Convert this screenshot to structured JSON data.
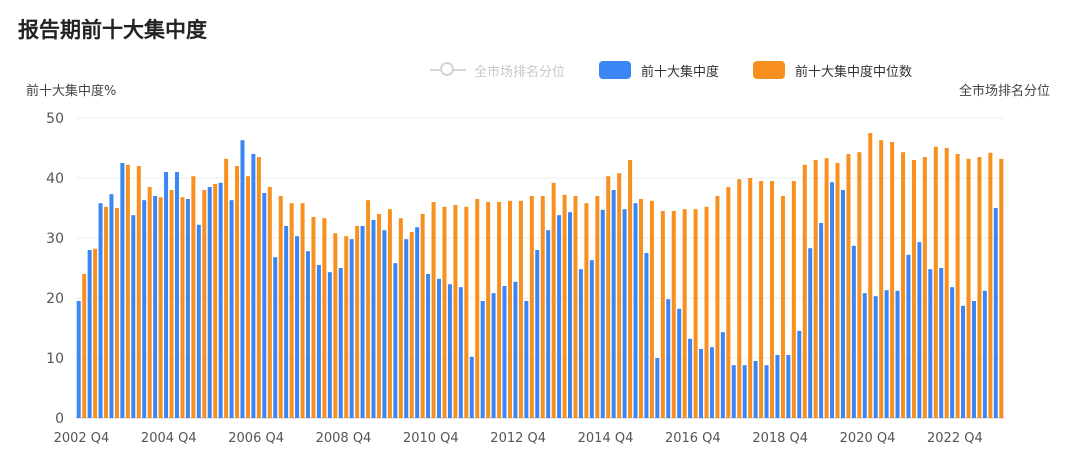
{
  "page": {
    "title": "报告期前十大集中度"
  },
  "legend": [
    {
      "label": "全市场排名分位",
      "color": "#d4d4d4",
      "kind": "line",
      "active": false
    },
    {
      "label": "前十大集中度",
      "color": "#3a86f5",
      "kind": "bar",
      "active": true
    },
    {
      "label": "前十大集中度中位数",
      "color": "#f7901e",
      "kind": "bar",
      "active": true
    }
  ],
  "axes": {
    "left_name": "前十大集中度%",
    "right_name": "全市场排名分位"
  },
  "chart_data": {
    "type": "bar",
    "title": "报告期前十大集中度",
    "ylabel": "前十大集中度%",
    "ylim": [
      0,
      50
    ],
    "yticks": [
      0,
      10,
      20,
      30,
      40,
      50
    ],
    "grid": true,
    "legend_position": "top",
    "x_tick_labels": [
      "2002 Q4",
      "2004 Q4",
      "2006 Q4",
      "2008 Q4",
      "2010 Q4",
      "2012 Q4",
      "2014 Q4",
      "2016 Q4",
      "2018 Q4",
      "2020 Q4",
      "2022 Q4"
    ],
    "categories": [
      "2002 Q4",
      "2003 Q1",
      "2003 Q2",
      "2003 Q3",
      "2003 Q4",
      "2004 Q1",
      "2004 Q2",
      "2004 Q3",
      "2004 Q4",
      "2005 Q1",
      "2005 Q2",
      "2005 Q3",
      "2005 Q4",
      "2006 Q1",
      "2006 Q2",
      "2006 Q3",
      "2006 Q4",
      "2007 Q1",
      "2007 Q2",
      "2007 Q3",
      "2007 Q4",
      "2008 Q1",
      "2008 Q2",
      "2008 Q3",
      "2008 Q4",
      "2009 Q1",
      "2009 Q2",
      "2009 Q3",
      "2009 Q4",
      "2010 Q1",
      "2010 Q2",
      "2010 Q3",
      "2010 Q4",
      "2011 Q1",
      "2011 Q2",
      "2011 Q3",
      "2011 Q4",
      "2012 Q1",
      "2012 Q2",
      "2012 Q3",
      "2012 Q4",
      "2013 Q1",
      "2013 Q2",
      "2013 Q3",
      "2013 Q4",
      "2014 Q1",
      "2014 Q2",
      "2014 Q3",
      "2014 Q4",
      "2015 Q1",
      "2015 Q2",
      "2015 Q3",
      "2015 Q4",
      "2016 Q1",
      "2016 Q2",
      "2016 Q3",
      "2016 Q4",
      "2017 Q1",
      "2017 Q2",
      "2017 Q3",
      "2017 Q4",
      "2018 Q1",
      "2018 Q2",
      "2018 Q3",
      "2018 Q4",
      "2019 Q1",
      "2019 Q2",
      "2019 Q3",
      "2019 Q4",
      "2020 Q1",
      "2020 Q2",
      "2020 Q3",
      "2020 Q4",
      "2021 Q1",
      "2021 Q2",
      "2021 Q3",
      "2021 Q4",
      "2022 Q1",
      "2022 Q2",
      "2022 Q3",
      "2022 Q4",
      "2023 Q1",
      "2023 Q2",
      "2023 Q3",
      "2023 Q4"
    ],
    "series": [
      {
        "name": "前十大集中度",
        "color": "#3a86f5",
        "values": [
          19.5,
          28,
          35.8,
          37.3,
          42.5,
          33.8,
          36.3,
          37,
          41,
          41,
          36.5,
          32.2,
          38.5,
          39.2,
          36.3,
          46.3,
          44,
          37.5,
          26.8,
          32,
          30.3,
          27.8,
          25.5,
          24.3,
          25,
          29.8,
          32,
          33,
          31.3,
          25.8,
          29.8,
          31.8,
          24,
          23.2,
          22.3,
          21.8,
          10.2,
          19.5,
          20.8,
          22,
          22.7,
          19.5,
          28,
          31.3,
          33.8,
          34.3,
          24.8,
          26.3,
          34.7,
          38,
          34.8,
          35.8,
          27.5,
          10,
          19.8,
          18.2,
          13.2,
          11.5,
          11.8,
          14.3,
          8.8,
          8.8,
          9.5,
          8.8,
          10.5,
          10.5,
          14.5,
          28.3,
          32.5,
          39.3,
          38,
          28.7,
          20.8,
          20.3,
          21.3,
          21.2,
          27.2,
          29.3,
          24.8,
          25,
          21.8,
          18.7,
          19.5,
          21.2,
          35
        ]
      },
      {
        "name": "前十大集中度中位数",
        "color": "#f7901e",
        "values": [
          24,
          28.2,
          35.2,
          35,
          42.2,
          42,
          38.5,
          36.8,
          38,
          36.8,
          40.3,
          38,
          39,
          43.2,
          42,
          40.3,
          43.5,
          38.5,
          37,
          35.8,
          35.8,
          33.5,
          33.3,
          30.8,
          30.3,
          32,
          36.3,
          34,
          34.8,
          33.3,
          31,
          34,
          36,
          35.2,
          35.5,
          35.2,
          36.5,
          36,
          36,
          36.2,
          36.2,
          37,
          37,
          39.2,
          37.2,
          37,
          35.8,
          37,
          40.3,
          40.8,
          43,
          36.5,
          36.2,
          34.5,
          34.5,
          34.8,
          34.8,
          35.2,
          37,
          38.5,
          39.8,
          40,
          39.5,
          39.5,
          37,
          39.5,
          42.2,
          43,
          43.3,
          42.5,
          44,
          44.3,
          47.5,
          46.3,
          46,
          44.3,
          43,
          43.5,
          45.2,
          45,
          44,
          43.2,
          43.5,
          44.2,
          43.2
        ]
      }
    ]
  }
}
